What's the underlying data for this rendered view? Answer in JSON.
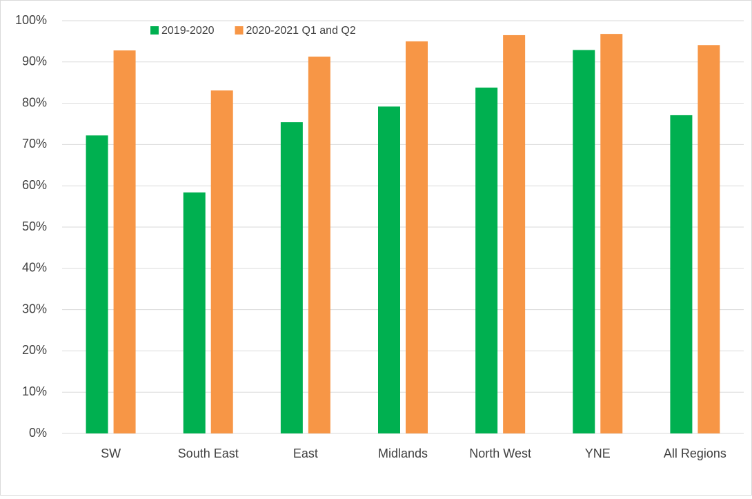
{
  "chart_data": {
    "type": "bar",
    "categories": [
      "SW",
      "South East",
      "East",
      "Midlands",
      "North West",
      "YNE",
      "All Regions"
    ],
    "series": [
      {
        "name": "2019-2020",
        "color": "#00b050",
        "values": [
          72.2,
          58.4,
          75.4,
          79.2,
          83.8,
          92.9,
          77.1
        ]
      },
      {
        "name": "2020-2021 Q1 and Q2",
        "color": "#f79646",
        "values": [
          92.8,
          83.1,
          91.3,
          95.0,
          96.5,
          96.8,
          94.1
        ]
      }
    ],
    "ylim": [
      0,
      100
    ],
    "yticks": [
      {
        "value": 0,
        "label": "0%"
      },
      {
        "value": 10,
        "label": "10%"
      },
      {
        "value": 20,
        "label": "20%"
      },
      {
        "value": 30,
        "label": "30%"
      },
      {
        "value": 40,
        "label": "40%"
      },
      {
        "value": 50,
        "label": "50%"
      },
      {
        "value": 60,
        "label": "60%"
      },
      {
        "value": 70,
        "label": "70%"
      },
      {
        "value": 80,
        "label": "80%"
      },
      {
        "value": 90,
        "label": "90%"
      },
      {
        "value": 100,
        "label": "100%"
      }
    ],
    "grid": true
  }
}
